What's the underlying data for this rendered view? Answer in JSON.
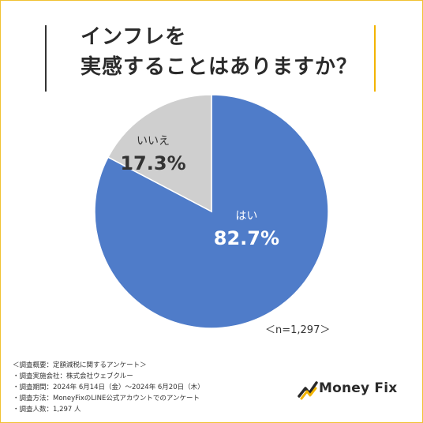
{
  "title_lines": [
    "インフレを",
    "実感することはありますか？"
  ],
  "chart_data": {
    "type": "pie",
    "slices": [
      {
        "label": "はい",
        "value": 82.7,
        "value_label": "82.7%",
        "color": "#4f7cc9"
      },
      {
        "label": "いいえ",
        "value": 17.3,
        "value_label": "17.3%",
        "color": "#cfcfcf"
      }
    ],
    "start": "12 o'clock",
    "direction": "clockwise"
  },
  "sample_note": "＜n=1,297＞",
  "survey_notes": [
    "＜調査概要：定額減税に関するアンケート＞",
    "・調査実施会社：株式会社ウェブクルー",
    "・調査期間：2024年 6月14日（金）〜2024年 6月20日（木）",
    "・調査方法：MoneyFixのLINE公式アカウントでのアンケート",
    "・調査人数：1,297 人"
  ],
  "logo": {
    "text": "Money Fix",
    "accent": "#f2b400"
  },
  "colors": {
    "frame": "#f1c232",
    "bar_left": "#333333",
    "bar_right": "#f2b400"
  }
}
